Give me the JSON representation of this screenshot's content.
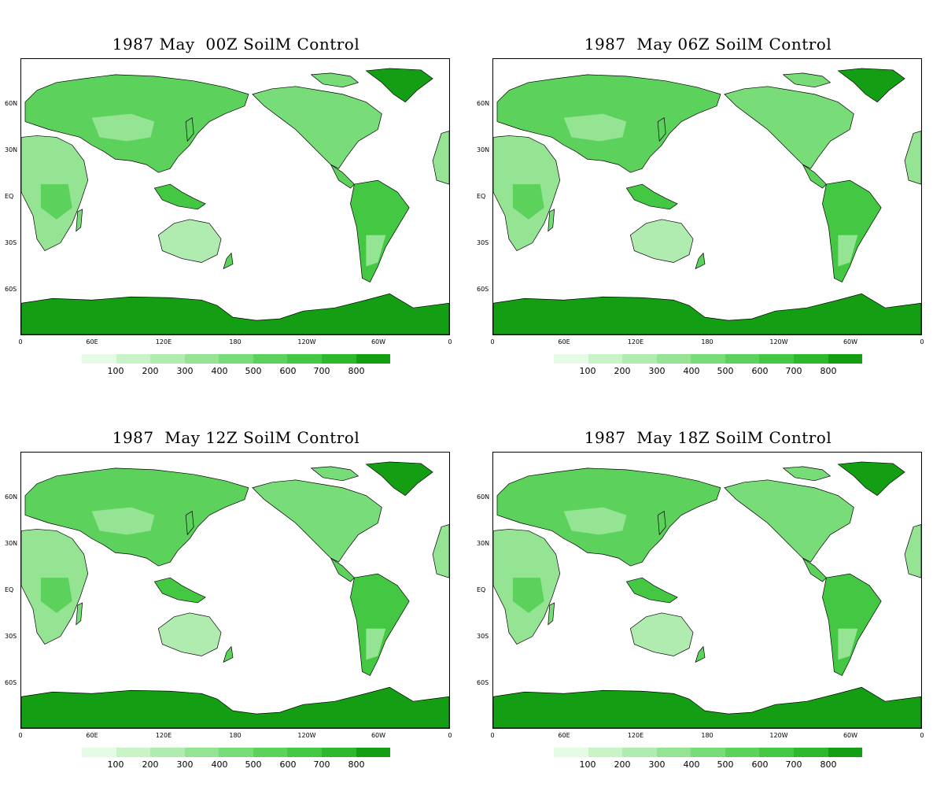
{
  "panels": [
    {
      "title": "1987 May  00Z SoilM Control"
    },
    {
      "title": "1987  May 06Z SoilM Control"
    },
    {
      "title": "1987  May 12Z SoilM Control"
    },
    {
      "title": "1987  May 18Z SoilM Control"
    }
  ],
  "lat_labels": [
    "60N",
    "30N",
    "EQ",
    "30S",
    "60S"
  ],
  "lon_labels": [
    "0",
    "60E",
    "120E",
    "180",
    "120W",
    "60W",
    "0"
  ],
  "colorbar": {
    "labels": [
      "100",
      "200",
      "300",
      "400",
      "500",
      "600",
      "700",
      "800"
    ],
    "colors": [
      "#e6fbe6",
      "#c8f4c8",
      "#b0ecb0",
      "#94e494",
      "#78dc78",
      "#5cd25c",
      "#44c844",
      "#2eb82e",
      "#149e14"
    ]
  },
  "land_colors": {
    "ocean": "#ffffff",
    "antarctica": "#149e14",
    "greenland": "#149e14"
  },
  "chart_data": [
    {
      "type": "heatmap",
      "title": "1987 May  00Z SoilM Control",
      "xlabel": "",
      "ylabel": "",
      "x_ticks": [
        "0",
        "60E",
        "120E",
        "180",
        "120W",
        "60W",
        "0"
      ],
      "y_ticks": [
        "60N",
        "30N",
        "EQ",
        "30S",
        "60S"
      ],
      "colorbar_levels": [
        100,
        200,
        300,
        400,
        500,
        600,
        700,
        800
      ]
    },
    {
      "type": "heatmap",
      "title": "1987  May 06Z SoilM Control",
      "xlabel": "",
      "ylabel": "",
      "x_ticks": [
        "0",
        "60E",
        "120E",
        "180",
        "120W",
        "60W",
        "0"
      ],
      "y_ticks": [
        "60N",
        "30N",
        "EQ",
        "30S",
        "60S"
      ],
      "colorbar_levels": [
        100,
        200,
        300,
        400,
        500,
        600,
        700,
        800
      ]
    },
    {
      "type": "heatmap",
      "title": "1987  May 12Z SoilM Control",
      "xlabel": "",
      "ylabel": "",
      "x_ticks": [
        "0",
        "60E",
        "120E",
        "180",
        "120W",
        "60W",
        "0"
      ],
      "y_ticks": [
        "60N",
        "30N",
        "EQ",
        "30S",
        "60S"
      ],
      "colorbar_levels": [
        100,
        200,
        300,
        400,
        500,
        600,
        700,
        800
      ]
    },
    {
      "type": "heatmap",
      "title": "1987  May 18Z SoilM Control",
      "xlabel": "",
      "ylabel": "",
      "x_ticks": [
        "0",
        "60E",
        "120E",
        "180",
        "120W",
        "60W",
        "0"
      ],
      "y_ticks": [
        "60N",
        "30N",
        "EQ",
        "30S",
        "60S"
      ],
      "colorbar_levels": [
        100,
        200,
        300,
        400,
        500,
        600,
        700,
        800
      ]
    }
  ]
}
